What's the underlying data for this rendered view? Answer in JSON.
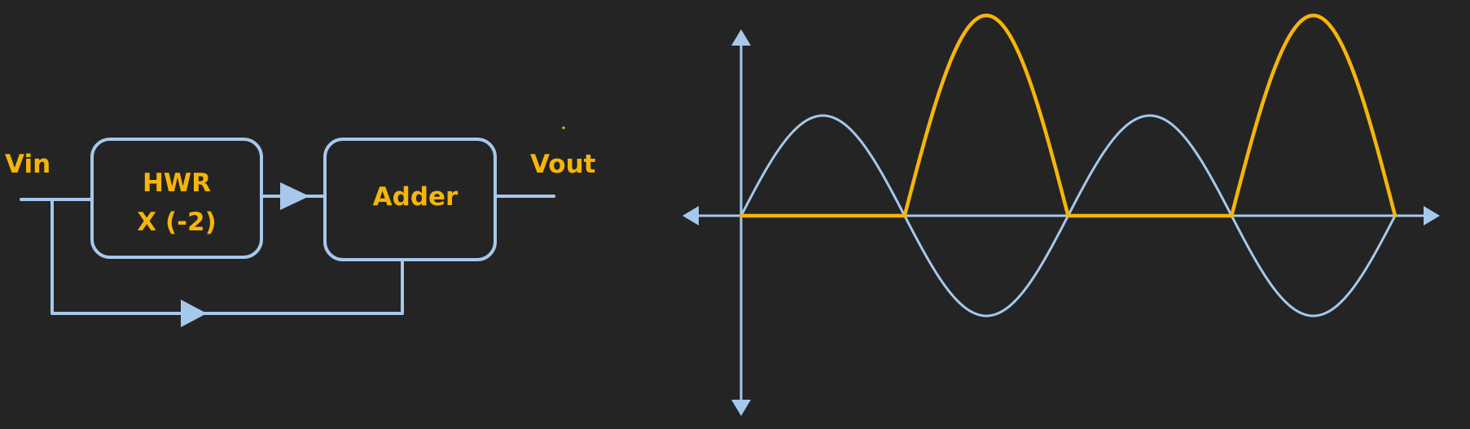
{
  "diagram": {
    "input_label": "Vin",
    "output_label": "Vout",
    "hwr_block": {
      "line1": "HWR",
      "line2": "X (-2)"
    },
    "adder_block": {
      "label": "Adder"
    }
  },
  "chart_data": {
    "type": "line",
    "xlim": [
      0,
      4
    ],
    "ylim": [
      -1.2,
      2.6
    ],
    "x_unit": "half-cycles",
    "series": [
      {
        "shape": "sine",
        "amplitude": 1,
        "color": "#a6c8ec",
        "values_at_peaks": [
          1,
          -1,
          1,
          -1
        ]
      },
      {
        "shape": "rectified",
        "color": "#f5b50a",
        "values_at_peaks": [
          0,
          2,
          0,
          2
        ]
      }
    ],
    "grid": false,
    "colors": {
      "input": "#a6c8ec",
      "output": "#f5b50a",
      "background": "#242424"
    }
  }
}
